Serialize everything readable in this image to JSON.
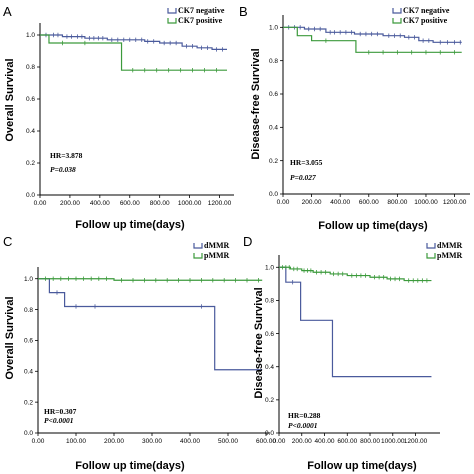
{
  "colors": {
    "blue": "#4a5a9c",
    "green": "#3c9a3c"
  },
  "chart_data": [
    {
      "panel": "A",
      "type": "line",
      "ylabel": "Overall Survival",
      "xlabel": "Follow up time(days)",
      "xlim": [
        0,
        1270
      ],
      "ylim": [
        0,
        1.05
      ],
      "x_ticks": [
        "0.00",
        "200.00",
        "400.00",
        "600.00",
        "800.00",
        "1000.00",
        "1200.00"
      ],
      "y_ticks": [
        "0.0",
        "0.2",
        "0.4",
        "0.6",
        "0.8",
        "1.0"
      ],
      "legend_position": "top-right",
      "hr_text": "HR=3.878",
      "p_text": "P=0.038",
      "series": [
        {
          "name": "CK7 negative",
          "color": "blue",
          "steps": [
            [
              0,
              1.0
            ],
            [
              150,
              0.99
            ],
            [
              300,
              0.98
            ],
            [
              450,
              0.97
            ],
            [
              700,
              0.96
            ],
            [
              800,
              0.95
            ],
            [
              950,
              0.93
            ],
            [
              1050,
              0.92
            ],
            [
              1150,
              0.91
            ],
            [
              1250,
              0.91
            ]
          ],
          "censors": [
            40,
            90,
            120,
            180,
            210,
            250,
            280,
            330,
            360,
            390,
            420,
            480,
            520,
            560,
            600,
            640,
            680,
            720,
            760,
            830,
            870,
            910,
            980,
            1020,
            1080,
            1120,
            1180,
            1220
          ]
        },
        {
          "name": "CK7 positive",
          "color": "green",
          "steps": [
            [
              0,
              1.0
            ],
            [
              60,
              0.95
            ],
            [
              545,
              0.78
            ],
            [
              1250,
              0.78
            ]
          ],
          "censors": [
            150,
            300,
            620,
            700,
            780,
            860,
            940,
            1020,
            1100,
            1180
          ]
        }
      ]
    },
    {
      "panel": "B",
      "type": "line",
      "ylabel": "Disease-free Survival",
      "xlabel": "Follow up time(days)",
      "xlim": [
        0,
        1280
      ],
      "ylim": [
        0,
        1.05
      ],
      "x_ticks": [
        "0.00",
        "200.00",
        "400.00",
        "600.00",
        "800.00",
        "1000.00",
        "1200.00"
      ],
      "y_ticks": [
        "0.0",
        "0.2",
        "0.4",
        "0.6",
        "0.8",
        "1.0"
      ],
      "legend_position": "top-right",
      "hr_text": "HR=3.055",
      "p_text": "P=0.027",
      "series": [
        {
          "name": "CK7 negative",
          "color": "blue",
          "steps": [
            [
              0,
              1.0
            ],
            [
              150,
              0.99
            ],
            [
              300,
              0.97
            ],
            [
              500,
              0.96
            ],
            [
              700,
              0.95
            ],
            [
              850,
              0.94
            ],
            [
              950,
              0.92
            ],
            [
              1050,
              0.91
            ],
            [
              1250,
              0.91
            ]
          ],
          "censors": [
            40,
            80,
            120,
            180,
            220,
            260,
            330,
            360,
            400,
            440,
            480,
            540,
            580,
            620,
            660,
            740,
            780,
            820,
            880,
            920,
            980,
            1020,
            1100,
            1150,
            1200,
            1240
          ]
        },
        {
          "name": "CK7 positive",
          "color": "green",
          "steps": [
            [
              0,
              1.0
            ],
            [
              100,
              0.95
            ],
            [
              200,
              0.92
            ],
            [
              510,
              0.85
            ],
            [
              1250,
              0.85
            ]
          ],
          "censors": [
            300,
            600,
            700,
            800,
            900,
            1000,
            1100,
            1200
          ]
        }
      ]
    },
    {
      "panel": "C",
      "type": "line",
      "ylabel": "Overall Survival",
      "xlabel": "Follow up time(days)",
      "xlim": [
        0,
        600
      ],
      "ylim": [
        0,
        1.05
      ],
      "x_ticks": [
        "0.00",
        "100.00",
        "200.00",
        "300.00",
        "400.00",
        "500.00",
        "600.00"
      ],
      "y_ticks": [
        "0.0",
        "0.2",
        "0.4",
        "0.6",
        "0.8",
        "1.0"
      ],
      "legend_position": "top-right",
      "hr_text": "HR=0.307",
      "p_text": "P<0.0001",
      "series": [
        {
          "name": "dMMR",
          "color": "blue",
          "steps": [
            [
              0,
              1.0
            ],
            [
              30,
              0.91
            ],
            [
              70,
              0.82
            ],
            [
              465,
              0.41
            ],
            [
              590,
              0.41
            ]
          ],
          "censors": [
            50,
            100,
            150,
            430
          ]
        },
        {
          "name": "pMMR",
          "color": "green",
          "steps": [
            [
              0,
              1.0
            ],
            [
              200,
              0.99
            ],
            [
              590,
              0.99
            ]
          ],
          "censors": [
            20,
            40,
            60,
            80,
            100,
            120,
            140,
            160,
            180,
            220,
            250,
            280,
            310,
            340,
            370,
            400,
            430,
            460,
            490,
            520,
            550,
            580
          ]
        }
      ]
    },
    {
      "panel": "D",
      "type": "line",
      "ylabel": "Disease-free Survival",
      "xlabel": "Follow up time(days)",
      "xlim": [
        0,
        1380
      ],
      "ylim": [
        0,
        1.05
      ],
      "x_ticks": [
        "0.00",
        "200.00",
        "400.00",
        "600.00",
        "800.00",
        "1000.00",
        "1200.00"
      ],
      "y_ticks": [
        "0.0",
        "0.2",
        "0.4",
        "0.6",
        "0.8",
        "1.0"
      ],
      "legend_position": "top-right",
      "hr_text": "HR=0.288",
      "p_text": "P<0.0001",
      "series": [
        {
          "name": "dMMR",
          "color": "blue",
          "steps": [
            [
              0,
              1.0
            ],
            [
              60,
              0.91
            ],
            [
              190,
              0.68
            ],
            [
              470,
              0.34
            ],
            [
              1340,
              0.34
            ]
          ],
          "censors": [
            120
          ]
        },
        {
          "name": "pMMR",
          "color": "green",
          "steps": [
            [
              0,
              1.0
            ],
            [
              100,
              0.99
            ],
            [
              200,
              0.98
            ],
            [
              300,
              0.97
            ],
            [
              450,
              0.96
            ],
            [
              600,
              0.95
            ],
            [
              800,
              0.94
            ],
            [
              950,
              0.93
            ],
            [
              1100,
              0.92
            ],
            [
              1340,
              0.92
            ]
          ],
          "censors": [
            30,
            60,
            90,
            130,
            160,
            220,
            250,
            280,
            330,
            370,
            410,
            480,
            520,
            560,
            640,
            680,
            720,
            760,
            840,
            880,
            920,
            980,
            1020,
            1060,
            1140,
            1180,
            1220,
            1260,
            1300
          ]
        }
      ]
    }
  ]
}
